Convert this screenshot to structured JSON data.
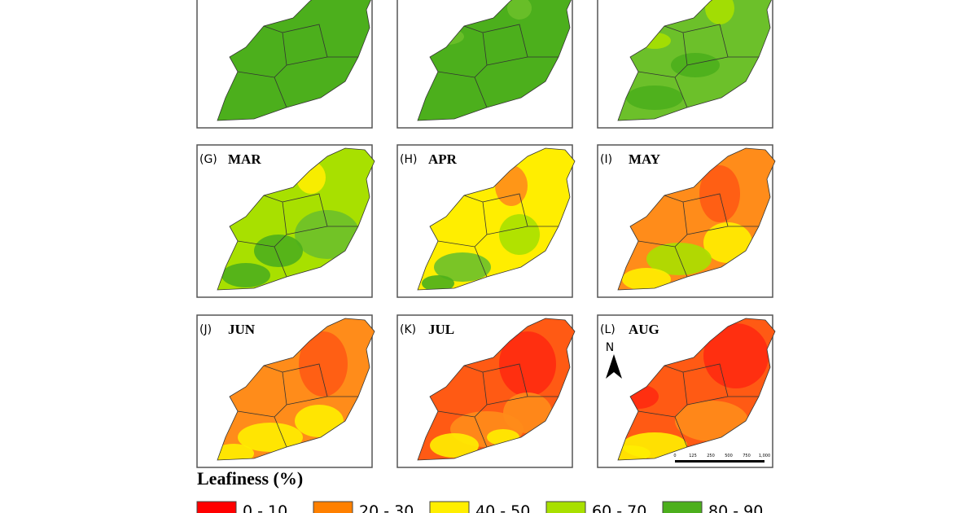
{
  "panels": [
    {
      "label": "(G)",
      "month": "MAR"
    },
    {
      "label": "(H)",
      "month": "APR"
    },
    {
      "label": "(I)",
      "month": "MAY"
    },
    {
      "label": "(J)",
      "month": "JUN"
    },
    {
      "label": "(K)",
      "month": "JUL"
    },
    {
      "label": "(L)",
      "month": "AUG"
    }
  ],
  "north": "N",
  "scale_bar": [
    "0",
    "125",
    "250",
    "500",
    "750",
    "1,000"
  ],
  "legend": {
    "title": "Leafiness (%)",
    "items": [
      {
        "label": "0 - 10",
        "color": "#ff0000"
      },
      {
        "label": "20 - 30",
        "color": "#ff8000"
      },
      {
        "label": "40 - 50",
        "color": "#ffee00"
      },
      {
        "label": "60 - 70",
        "color": "#a8e000"
      },
      {
        "label": "80 - 90",
        "color": "#4caf1c"
      }
    ]
  }
}
